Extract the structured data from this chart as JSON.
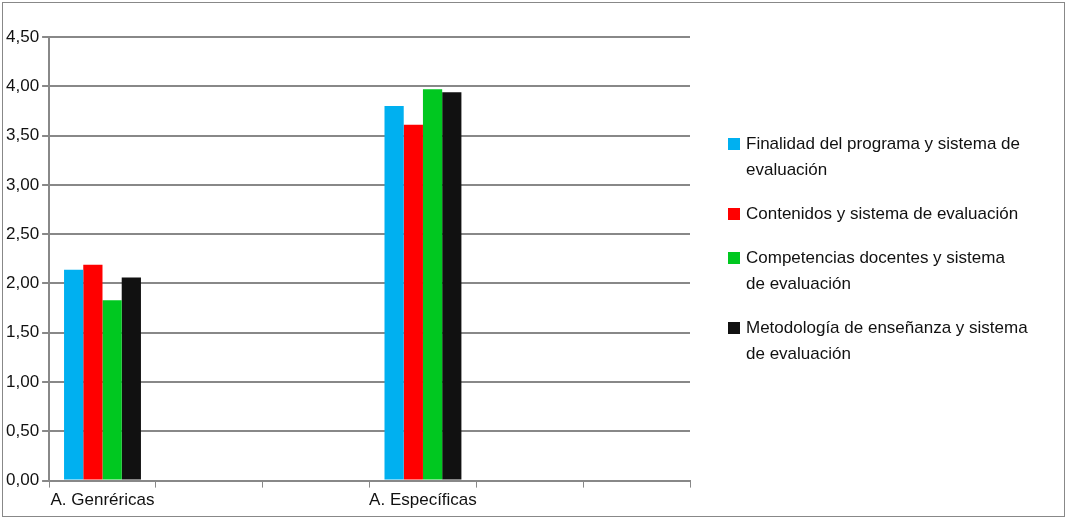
{
  "chart_data": {
    "type": "bar",
    "categories": [
      "A. Genréricas",
      null,
      null,
      "A. Específicas",
      null,
      null
    ],
    "series": [
      {
        "name": "Finalidad del programa y sistema de evaluación",
        "color": "#00b0f0",
        "values": [
          2.14,
          null,
          null,
          3.8,
          null,
          null
        ]
      },
      {
        "name": "Contenidos y sistema de evaluación",
        "color": "#ff0000",
        "values": [
          2.19,
          null,
          null,
          3.61,
          null,
          null
        ]
      },
      {
        "name": "Competencias docentes y sistema de evaluación",
        "color": "#00c820",
        "values": [
          1.83,
          null,
          null,
          3.97,
          null,
          null
        ]
      },
      {
        "name": "Metodología de enseñanza y sistema de evaluación",
        "color": "#111111",
        "values": [
          2.06,
          null,
          null,
          3.94,
          null,
          null
        ]
      }
    ],
    "ylim": [
      0,
      4.5
    ],
    "yticks": [
      {
        "value": 0,
        "label": "0,00"
      },
      {
        "value": 0.5,
        "label": "0,50"
      },
      {
        "value": 1,
        "label": "1,00"
      },
      {
        "value": 1.5,
        "label": "1,50"
      },
      {
        "value": 2,
        "label": "2,00"
      },
      {
        "value": 2.5,
        "label": "2,50"
      },
      {
        "value": 3,
        "label": "3,00"
      },
      {
        "value": 3.5,
        "label": "3,50"
      },
      {
        "value": 4,
        "label": "4,00"
      },
      {
        "value": 4.5,
        "label": "4,50"
      }
    ],
    "grid": "y",
    "legend": "right"
  }
}
